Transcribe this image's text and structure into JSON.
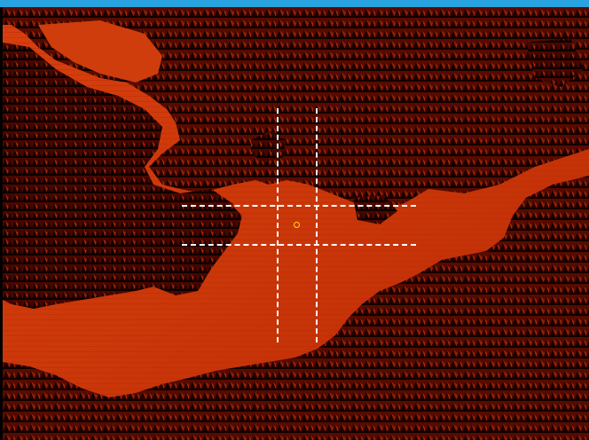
{
  "window": {
    "titlebar_color": "#29a3e0"
  },
  "viewport": {
    "content": "elevation-hillshade-raster",
    "colors": {
      "ground": "#c92e06",
      "ground_light": "#e04a12",
      "canopy_dark": "#3a0600",
      "canopy_shadow": "#1a0200",
      "canopy_lit": "#8a1a04"
    }
  },
  "overlay": {
    "guide_color": "#ffffff",
    "guide_style": "dashed",
    "marker_color": "#ffdc1e",
    "marker_icon": "target-circle-icon"
  }
}
